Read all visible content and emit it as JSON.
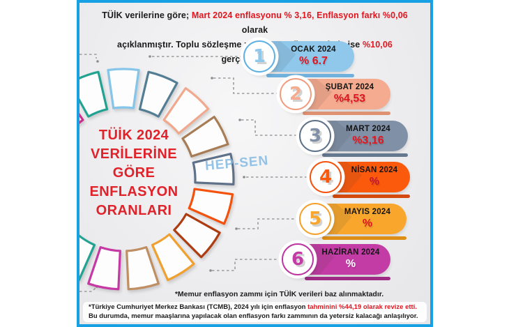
{
  "banner": {
    "p1": "TÜİK verilerine göre; ",
    "p2": "Mart 2024 enflasyonu % 3,16, Enflasyon farkı %0,06",
    "p3a": " olarak",
    "p3b": "açıklanmıştır.  Toplu sözleşme zammı + Enflasyon farkı ise ",
    "p4": "%10,06",
    "p5": " gerçekleşmiştir."
  },
  "donut": {
    "title_lines": [
      "TÜİK 2024",
      "VERİLERİNE",
      "GÖRE",
      "ENFLASYON",
      "ORANLARI"
    ],
    "title_color": "#E0222A",
    "watermark": "HEP-SEN",
    "segment_colors": [
      "#85C5EA",
      "#527D93",
      "#F1A98D",
      "#A87C55",
      "#5E7189",
      "#F4520C",
      "#AD3C10",
      "#F0A02F",
      "#BF8F63",
      "#C539A4",
      "#22A392",
      "#8CC8EA",
      "#F1A98D",
      "#A87C55",
      "#5E7189",
      "#C5308F",
      "#22A392"
    ]
  },
  "months": {
    "items": [
      {
        "number": "1",
        "label": "OCAK 2024",
        "value": "% 6.7",
        "pill_color": "#8FC8EB",
        "strip_color": "#6FB0DC",
        "ring_color": "#5FB0E2",
        "value_color": "#E0151F"
      },
      {
        "number": "2",
        "label": "ŞUBAT 2024",
        "value": "%4,53",
        "pill_color": "#F5AB8F",
        "strip_color": "#DE9272",
        "ring_color": "#F09C7E",
        "value_color": "#E0151F"
      },
      {
        "number": "3",
        "label": "MART 2024",
        "value": "%3,16",
        "pill_color": "#8090A6",
        "strip_color": "#64788F",
        "ring_color": "#5F7189",
        "value_color": "#E0151F"
      },
      {
        "number": "4",
        "label": "NİSAN 2024",
        "value": "%",
        "pill_color": "#FB5A0D",
        "strip_color": "#D44A0E",
        "ring_color": "#F4520C",
        "value_color": "#C21632"
      },
      {
        "number": "5",
        "label": "MAYIS 2024",
        "value": "%",
        "pill_color": "#F8A62C",
        "strip_color": "#DE8E14",
        "ring_color": "#F5A02A",
        "value_color": "#DD1420"
      },
      {
        "number": "6",
        "label": "HAZİRAN 2024",
        "value": "%",
        "pill_color": "#C33BA4",
        "strip_color": "#9E2C85",
        "ring_color": "#BC34A0",
        "value_color": "#FFFFFF"
      }
    ]
  },
  "footnotes": {
    "note1": "*Memur enflasyon zammı için TÜİK verileri baz alınmaktadır.",
    "note2_p1": "*Türkiye Cumhuriyet Merkez Bankası (TCMB), 2024 yılı için enflasyon ",
    "note2_p2": "tahminini %44,19 olarak revize etti.",
    "note2_p3": " Bu durumda, memur maaşlarına yapılacak olan enflasyon farkı zammının da yetersiz kalacağı anlaşılıyor."
  },
  "colors": {
    "card_border": "#18A0E5",
    "accent_red": "#E1161F",
    "connector_gray": "#9B9B9B"
  }
}
